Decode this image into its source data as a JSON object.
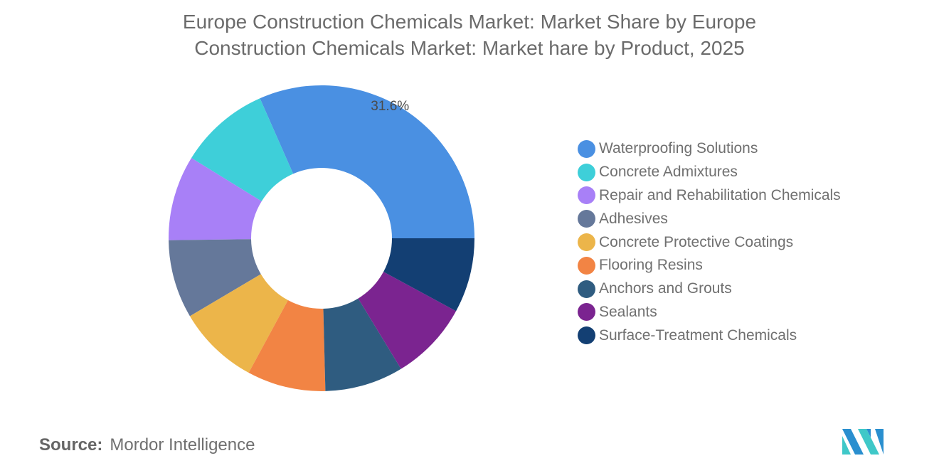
{
  "chart_data": {
    "type": "pie",
    "donut": true,
    "title": "Europe Construction Chemicals Market: Market Share by Europe Construction Chemicals Market: Market hare by Product, 2025",
    "title_lines": [
      "Europe Construction Chemicals Market: Market Share by Europe",
      "Construction Chemicals Market: Market hare by Product, 2025"
    ],
    "categories": [
      "Waterproofing Solutions",
      "Concrete Admixtures",
      "Repair and Rehabilitation Chemicals",
      "Adhesives",
      "Concrete Protective Coatings",
      "Flooring Resins",
      "Anchors and Grouts",
      "Sealants",
      "Surface-Treatment Chemicals"
    ],
    "values": [
      31.6,
      9.6,
      9.0,
      8.3,
      8.6,
      8.3,
      8.3,
      8.4,
      7.9
    ],
    "colors": [
      "#4a90e2",
      "#3ecfd9",
      "#a880f7",
      "#65789a",
      "#ecb54a",
      "#f28444",
      "#2f5c80",
      "#7b2490",
      "#133f73"
    ],
    "data_labels": [
      "31.6%",
      "",
      "",
      "",
      "",
      "",
      "",
      "",
      ""
    ],
    "legend_position": "right"
  },
  "source": {
    "label": "Source:",
    "value": "Mordor Intelligence"
  },
  "logo": {
    "colors": [
      "#2a8fcf",
      "#3fc8c8"
    ]
  }
}
